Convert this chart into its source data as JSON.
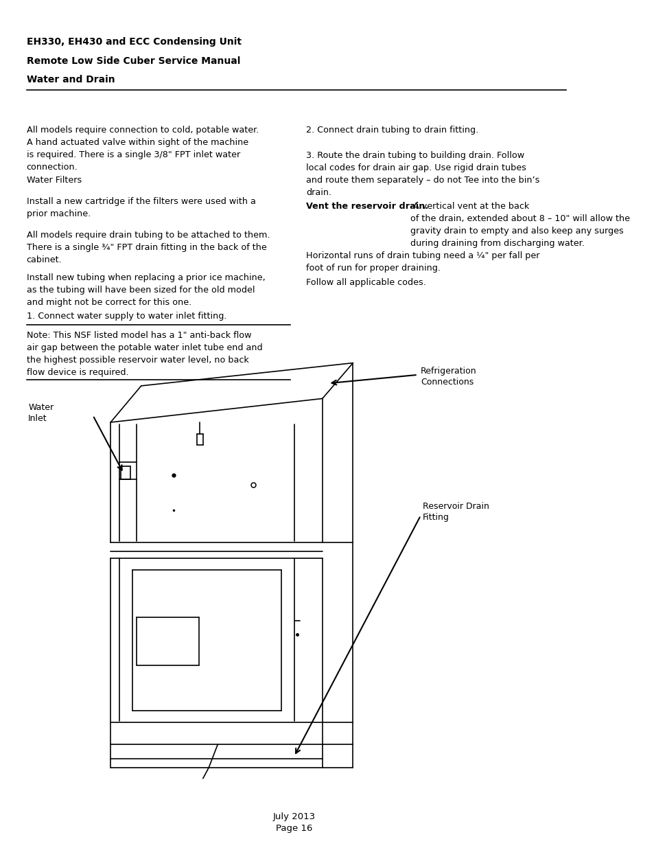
{
  "background_color": "#ffffff",
  "header_line1": "EH330, EH430 and ECC Condensing Unit",
  "header_line2": "Remote Low Side Cuber Service Manual",
  "header_line3": "Water and Drain",
  "footer_text": "July 2013\nPage 16"
}
